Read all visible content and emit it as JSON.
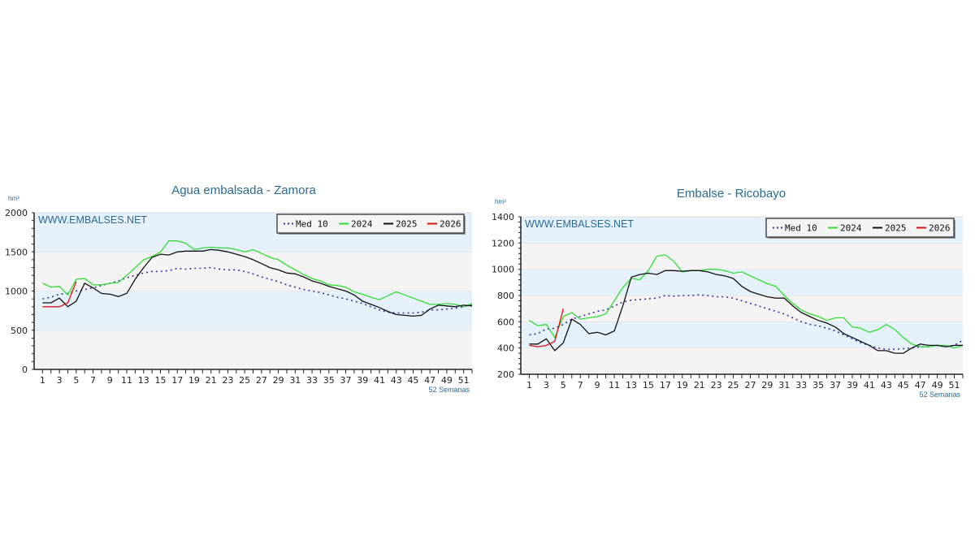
{
  "chart_data": [
    {
      "type": "line",
      "title": "Agua embalsada - Zamora",
      "watermark": "WWW.EMBALSES.NET",
      "ylabel": "hm³",
      "xlabel": "52 Semanas",
      "ylim": [
        0,
        2000
      ],
      "yticks": [
        0,
        500,
        1000,
        1500,
        2000
      ],
      "xticks": [
        1,
        3,
        5,
        7,
        9,
        11,
        13,
        15,
        17,
        19,
        21,
        23,
        25,
        27,
        29,
        31,
        33,
        35,
        37,
        39,
        41,
        43,
        45,
        47,
        49,
        51
      ],
      "legend_position": "top-right",
      "colors": {
        "med": "#3333aa",
        "2024": "#33dd33",
        "2025": "#111111",
        "2026": "#dd1111",
        "band_blue": "#e6f2fb",
        "band_gray": "#f4f4f4",
        "title": "#2a6a96"
      },
      "series": [
        {
          "name": "Med 10",
          "style": "dotted",
          "color_key": "med",
          "weeks_from": 1,
          "values": [
            900,
            920,
            960,
            970,
            1000,
            1020,
            1040,
            1070,
            1100,
            1130,
            1170,
            1200,
            1230,
            1250,
            1250,
            1260,
            1290,
            1280,
            1290,
            1290,
            1300,
            1280,
            1270,
            1270,
            1250,
            1220,
            1180,
            1150,
            1120,
            1080,
            1050,
            1020,
            1000,
            980,
            950,
            920,
            900,
            870,
            840,
            800,
            760,
            730,
            720,
            720,
            720,
            730,
            760,
            760,
            770,
            780,
            800,
            830
          ]
        },
        {
          "name": "2024",
          "style": "solid",
          "color_key": "2024",
          "weeks_from": 1,
          "values": [
            1100,
            1050,
            1060,
            950,
            1150,
            1160,
            1080,
            1080,
            1100,
            1110,
            1200,
            1300,
            1400,
            1440,
            1500,
            1640,
            1640,
            1610,
            1530,
            1550,
            1560,
            1550,
            1550,
            1530,
            1500,
            1530,
            1480,
            1430,
            1400,
            1330,
            1270,
            1210,
            1160,
            1130,
            1080,
            1070,
            1050,
            990,
            960,
            920,
            890,
            940,
            990,
            950,
            910,
            870,
            830,
            830,
            840,
            830,
            800,
            840
          ]
        },
        {
          "name": "2025",
          "style": "solid",
          "color_key": "2025",
          "weeks_from": 1,
          "values": [
            850,
            850,
            910,
            800,
            870,
            1100,
            1040,
            970,
            960,
            930,
            970,
            1150,
            1300,
            1430,
            1470,
            1460,
            1500,
            1510,
            1510,
            1510,
            1530,
            1520,
            1500,
            1470,
            1440,
            1400,
            1350,
            1300,
            1270,
            1230,
            1220,
            1180,
            1130,
            1100,
            1060,
            1030,
            1000,
            950,
            870,
            830,
            790,
            740,
            700,
            690,
            680,
            690,
            770,
            820,
            810,
            800,
            820,
            810
          ]
        },
        {
          "name": "2026",
          "style": "solid",
          "color_key": "2026",
          "weeks_from": 1,
          "values": [
            800,
            800,
            800,
            850,
            1120
          ]
        }
      ]
    },
    {
      "type": "line",
      "title": "Embalse - Ricobayo",
      "watermark": "WWW.EMBALSES.NET",
      "ylabel": "hm³",
      "xlabel": "52 Semanas",
      "ylim": [
        200,
        1400
      ],
      "yticks": [
        200,
        400,
        600,
        800,
        1000,
        1200,
        1400
      ],
      "xticks": [
        1,
        3,
        5,
        7,
        9,
        11,
        13,
        15,
        17,
        19,
        21,
        23,
        25,
        27,
        29,
        31,
        33,
        35,
        37,
        39,
        41,
        43,
        45,
        47,
        49,
        51
      ],
      "legend_position": "top-right",
      "colors": {
        "med": "#3333aa",
        "2024": "#33dd33",
        "2025": "#111111",
        "2026": "#dd1111",
        "band_blue": "#e6f2fb",
        "band_gray": "#f4f4f4",
        "title": "#2a6a96"
      },
      "series": [
        {
          "name": "Med 10",
          "style": "dotted",
          "color_key": "med",
          "weeks_from": 1,
          "values": [
            500,
            510,
            545,
            550,
            580,
            620,
            640,
            660,
            680,
            690,
            720,
            750,
            765,
            770,
            775,
            780,
            800,
            795,
            800,
            800,
            805,
            800,
            790,
            790,
            780,
            760,
            740,
            720,
            700,
            680,
            660,
            630,
            600,
            580,
            570,
            550,
            530,
            500,
            470,
            440,
            420,
            400,
            390,
            390,
            395,
            400,
            410,
            410,
            420,
            410,
            420,
            460
          ]
        },
        {
          "name": "2024",
          "style": "solid",
          "color_key": "2024",
          "weeks_from": 1,
          "values": [
            610,
            570,
            580,
            480,
            640,
            670,
            620,
            630,
            640,
            660,
            760,
            860,
            930,
            920,
            990,
            1100,
            1110,
            1060,
            980,
            990,
            990,
            1000,
            1000,
            990,
            970,
            980,
            950,
            920,
            890,
            870,
            800,
            740,
            690,
            660,
            640,
            610,
            630,
            630,
            560,
            550,
            520,
            540,
            580,
            540,
            480,
            430,
            410,
            410,
            420,
            420,
            400,
            420
          ]
        },
        {
          "name": "2025",
          "style": "solid",
          "color_key": "2025",
          "weeks_from": 1,
          "values": [
            430,
            430,
            470,
            380,
            440,
            620,
            580,
            510,
            520,
            500,
            530,
            720,
            940,
            960,
            970,
            960,
            990,
            990,
            985,
            990,
            990,
            980,
            960,
            950,
            930,
            870,
            830,
            810,
            790,
            780,
            780,
            720,
            670,
            640,
            610,
            590,
            560,
            510,
            480,
            450,
            420,
            380,
            380,
            360,
            360,
            400,
            430,
            420,
            420,
            410,
            420,
            420
          ]
        },
        {
          "name": "2026",
          "style": "solid",
          "color_key": "2026",
          "weeks_from": 1,
          "values": [
            420,
            410,
            420,
            450,
            700
          ]
        }
      ]
    }
  ]
}
